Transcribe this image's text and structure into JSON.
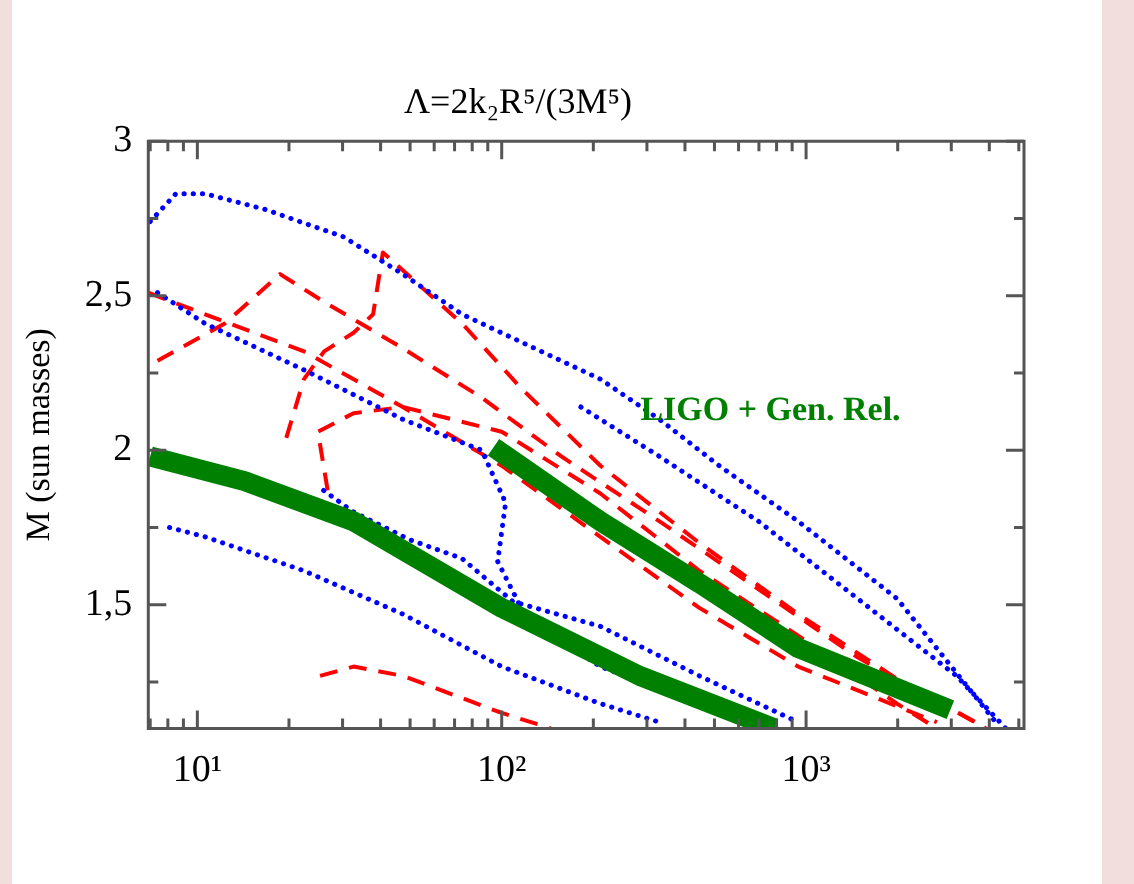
{
  "chart_data": {
    "type": "line",
    "title": "Λ=2k₂R⁵/(3M⁵)",
    "ylabel": "M (sun masses)",
    "log": "x",
    "xlim": [
      6.9,
      5200
    ],
    "ylim": [
      1.1,
      3
    ],
    "xticks": [
      {
        "value": 7,
        "label": null
      },
      {
        "value": 8,
        "label": null
      },
      {
        "value": 9,
        "label": null
      },
      {
        "value": 10,
        "label": "10¹"
      },
      {
        "value": 20,
        "label": null
      },
      {
        "value": 30,
        "label": null
      },
      {
        "value": 40,
        "label": null
      },
      {
        "value": 50,
        "label": null
      },
      {
        "value": 60,
        "label": null
      },
      {
        "value": 70,
        "label": null
      },
      {
        "value": 80,
        "label": null
      },
      {
        "value": 90,
        "label": null
      },
      {
        "value": 100,
        "label": "10²"
      },
      {
        "value": 200,
        "label": null
      },
      {
        "value": 300,
        "label": null
      },
      {
        "value": 400,
        "label": null
      },
      {
        "value": 500,
        "label": null
      },
      {
        "value": 600,
        "label": null
      },
      {
        "value": 700,
        "label": null
      },
      {
        "value": 800,
        "label": null
      },
      {
        "value": 900,
        "label": null
      },
      {
        "value": 1000,
        "label": "10³"
      },
      {
        "value": 2000,
        "label": null
      },
      {
        "value": 3000,
        "label": null
      },
      {
        "value": 4000,
        "label": null
      },
      {
        "value": 5000,
        "label": null
      }
    ],
    "yticks": [
      {
        "value": 1.25,
        "label": null
      },
      {
        "value": 1.5,
        "label": "1,5"
      },
      {
        "value": 1.75,
        "label": null
      },
      2,
      {
        "value": 2.25,
        "label": null
      },
      {
        "value": 2.5,
        "label": "2,5"
      },
      {
        "value": 2.75,
        "label": null
      },
      3
    ],
    "grid": false,
    "legend": false,
    "marker": "none",
    "series": [
      {
        "color": "#008000",
        "line_style": "solid",
        "x": [
          7,
          14.3,
          32.6,
          100,
          284,
          787
        ],
        "values": [
          1.98,
          1.9,
          1.77,
          1.49,
          1.27,
          1.1
        ]
      },
      {
        "name": "LIGO + Gen. Rel.",
        "color": "#008000",
        "line_style": "solid",
        "x": [
          94,
          211,
          446,
          942,
          2980
        ],
        "values": [
          2.01,
          1.77,
          1.57,
          1.36,
          1.16
        ]
      },
      {
        "color": "#0000ff",
        "line_style": "dotted",
        "x": [
          7,
          8.5,
          10.6,
          16.6,
          30.3,
          47.3,
          74.1,
          116,
          211,
          330,
          518,
          942,
          1990,
          4200
        ],
        "values": [
          2.74,
          2.83,
          2.83,
          2.78,
          2.69,
          2.57,
          2.44,
          2.35,
          2.23,
          2.1,
          1.95,
          1.77,
          1.52,
          1.12
        ]
      },
      {
        "color": "#0000ff",
        "line_style": "dotted",
        "x": [
          7.4,
          10.6,
          22.4,
          47.3,
          86,
          103,
          97,
          120,
          211,
          446,
          698
        ],
        "values": [
          2.51,
          2.41,
          2.26,
          2.1,
          2.0,
          1.83,
          1.64,
          1.46,
          1.3,
          1.18,
          1.1
        ]
      },
      {
        "color": "#0000ff",
        "line_style": "dotted",
        "x": [
          8.1,
          10.6,
          22.4,
          47.3,
          100,
          211,
          330
        ],
        "values": [
          1.75,
          1.72,
          1.61,
          1.47,
          1.3,
          1.18,
          1.12
        ]
      },
      {
        "color": "#0000ff",
        "line_style": "dotted",
        "x": [
          26,
          32.6,
          50,
          74,
          109,
          211,
          446,
          942
        ],
        "values": [
          1.87,
          1.8,
          1.71,
          1.65,
          1.51,
          1.43,
          1.27,
          1.12
        ]
      },
      {
        "color": "#0000ff",
        "line_style": "dotted",
        "x": [
          182,
          330,
          698,
          1476,
          3120,
          4530
        ],
        "values": [
          2.14,
          1.98,
          1.77,
          1.52,
          1.27,
          1.1
        ]
      },
      {
        "color": "#ff0000",
        "line_style": "dashed",
        "x": [
          7.4,
          12.3,
          18.7,
          26.1,
          47.3,
          86,
          157,
          330,
          698,
          1476,
          3610
        ],
        "values": [
          2.29,
          2.41,
          2.57,
          2.48,
          2.33,
          2.17,
          1.98,
          1.77,
          1.55,
          1.33,
          1.12
        ]
      },
      {
        "color": "#ff0000",
        "line_style": "dashed",
        "x": [
          6.9,
          10.6,
          22.4,
          47.3,
          100,
          211,
          446,
          942,
          2690
        ],
        "values": [
          2.51,
          2.44,
          2.32,
          2.14,
          1.95,
          1.72,
          1.49,
          1.3,
          1.12
        ]
      },
      {
        "color": "#ff0000",
        "line_style": "dashed",
        "x": [
          19.6,
          22.4,
          26.1,
          32.6,
          37.8,
          40.7,
          74.1,
          116,
          211,
          446,
          942,
          1990,
          3900
        ],
        "values": [
          2.04,
          2.23,
          2.32,
          2.38,
          2.44,
          2.64,
          2.41,
          2.2,
          1.95,
          1.7,
          1.47,
          1.26,
          1.1
        ]
      },
      {
        "color": "#ff0000",
        "line_style": "dashed",
        "x": [
          26.8,
          24.9,
          32.6,
          47.3,
          100,
          211,
          446,
          942,
          1990,
          2690
        ],
        "values": [
          1.87,
          2.06,
          2.12,
          2.14,
          2.06,
          1.86,
          1.61,
          1.4,
          1.18,
          1.1
        ]
      },
      {
        "color": "#ff0000",
        "line_style": "dashed",
        "x": [
          25.3,
          32.6,
          47.3,
          100,
          145
        ],
        "values": [
          1.27,
          1.3,
          1.27,
          1.15,
          1.1
        ]
      }
    ]
  }
}
